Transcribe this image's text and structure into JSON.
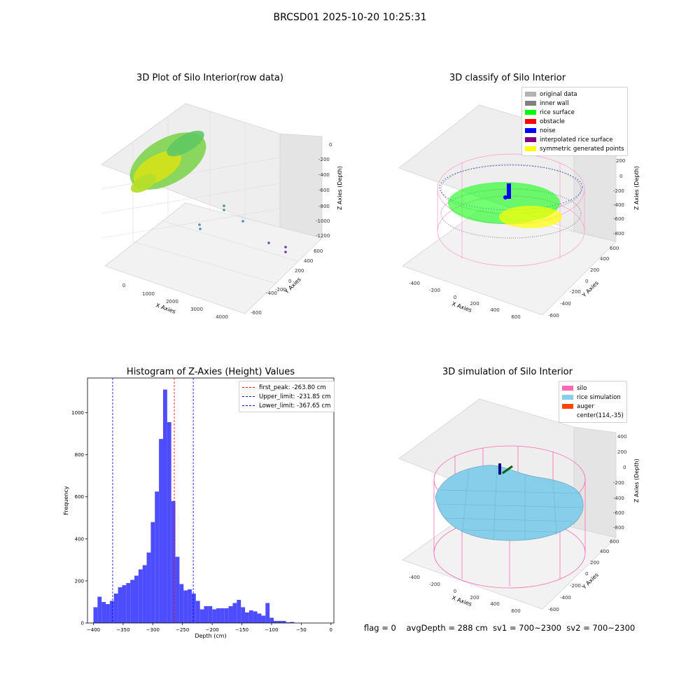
{
  "figure": {
    "suptitle": "BRCSD01 2025-10-20 10:25:31",
    "footer": {
      "flag": "flag = 0",
      "avg_depth": "avgDepth = 288 cm",
      "sv1": "sv1 = 700~2300",
      "sv2": "sv2 = 700~2300"
    }
  },
  "colors": {
    "histogram_bar": "#4d4dff",
    "peak_line": "#ff0000",
    "limit_line": "#0000ff",
    "silo_wire": "#ff69b4",
    "rice_fill": "#87ceeb"
  },
  "chart_data": [
    {
      "type": "scatter",
      "title": "3D Plot of Silo Interior(row data)",
      "xlabel": "X Axies",
      "ylabel": "Y Axies",
      "zlabel": "Z Axies (Depth)",
      "xticks": [
        "0",
        "1000",
        "2000",
        "3000",
        "4000"
      ],
      "yticks": [
        "-600",
        "-400",
        "-200",
        "0",
        "200",
        "400",
        "600"
      ],
      "zticks": [
        "-1200",
        "-1000",
        "-800",
        "-600",
        "-400",
        "-200",
        "0"
      ],
      "colormap": "viridis"
    },
    {
      "type": "scatter",
      "title": "3D classify of Silo Interior",
      "xlabel": "X Axies",
      "ylabel": "Y Axies",
      "zlabel": "Z Axies (Depth)",
      "xticks": [
        "-400",
        "-200",
        "0",
        "200",
        "400",
        "600"
      ],
      "yticks": [
        "-600",
        "-400",
        "-200",
        "0",
        "200",
        "400",
        "600"
      ],
      "zticks": [
        "-800",
        "-600",
        "-400",
        "-200",
        "0",
        "200"
      ],
      "legend": [
        {
          "label": "original data",
          "color": "#b3b3b3"
        },
        {
          "label": "inner wall",
          "color": "#808080"
        },
        {
          "label": "rice surface",
          "color": "#00ff00"
        },
        {
          "label": "obstacle",
          "color": "#ff0000"
        },
        {
          "label": "noise",
          "color": "#0000ff"
        },
        {
          "label": "interpolated rice surface",
          "color": "#800080"
        },
        {
          "label": "symmetric generated points",
          "color": "#ffff00"
        }
      ],
      "legend_position": "top-right"
    },
    {
      "type": "bar",
      "title": "Histogram of Z-Axies (Height) Values",
      "xlabel": "Depth (cm)",
      "ylabel": "Frequency",
      "xlim": [
        -410,
        5
      ],
      "ylim": [
        0,
        1165
      ],
      "xticks": [
        -400,
        -350,
        -300,
        -250,
        -200,
        -150,
        -100,
        -50,
        0
      ],
      "yticks": [
        0,
        200,
        400,
        600,
        800,
        1000
      ],
      "bin_start": -400,
      "bin_width": 6.9,
      "values": [
        75,
        125,
        100,
        90,
        105,
        140,
        170,
        180,
        190,
        205,
        225,
        255,
        275,
        335,
        480,
        625,
        875,
        1110,
        955,
        580,
        315,
        185,
        155,
        160,
        140,
        105,
        65,
        80,
        80,
        65,
        70,
        70,
        70,
        80,
        95,
        110,
        75,
        50,
        60,
        55,
        45,
        35,
        95,
        25,
        10,
        10,
        10,
        3,
        5
      ],
      "vlines": [
        {
          "label": "first_peak: -263.80 cm",
          "x": -263.8,
          "color": "#ff0000"
        },
        {
          "label": "Upper_limit: -231.85 cm",
          "x": -231.85,
          "color": "#0000ff"
        },
        {
          "label": "Lower_limit: -367.65 cm",
          "x": -367.65,
          "color": "#0000ff"
        }
      ],
      "legend_position": "top-right"
    },
    {
      "type": "scatter",
      "title": "3D simulation of Silo Interior",
      "xlabel": "X Axies",
      "ylabel": "Y Axies",
      "zlabel": "Z Axies (Depth)",
      "xticks": [
        "-400",
        "-200",
        "0",
        "200",
        "400",
        "600"
      ],
      "yticks": [
        "-600",
        "-400",
        "-200",
        "0",
        "200",
        "400",
        "600"
      ],
      "zticks": [
        "-800",
        "-600",
        "-400",
        "-200",
        "0",
        "200",
        "400"
      ],
      "legend": [
        {
          "label": "silo",
          "color": "#ff69b4"
        },
        {
          "label": "rice simulation",
          "color": "#87ceeb"
        },
        {
          "label": "auger",
          "color": "#ff4500"
        },
        {
          "label": "center(114,-35)",
          "color": ""
        }
      ],
      "legend_position": "top-right"
    }
  ]
}
